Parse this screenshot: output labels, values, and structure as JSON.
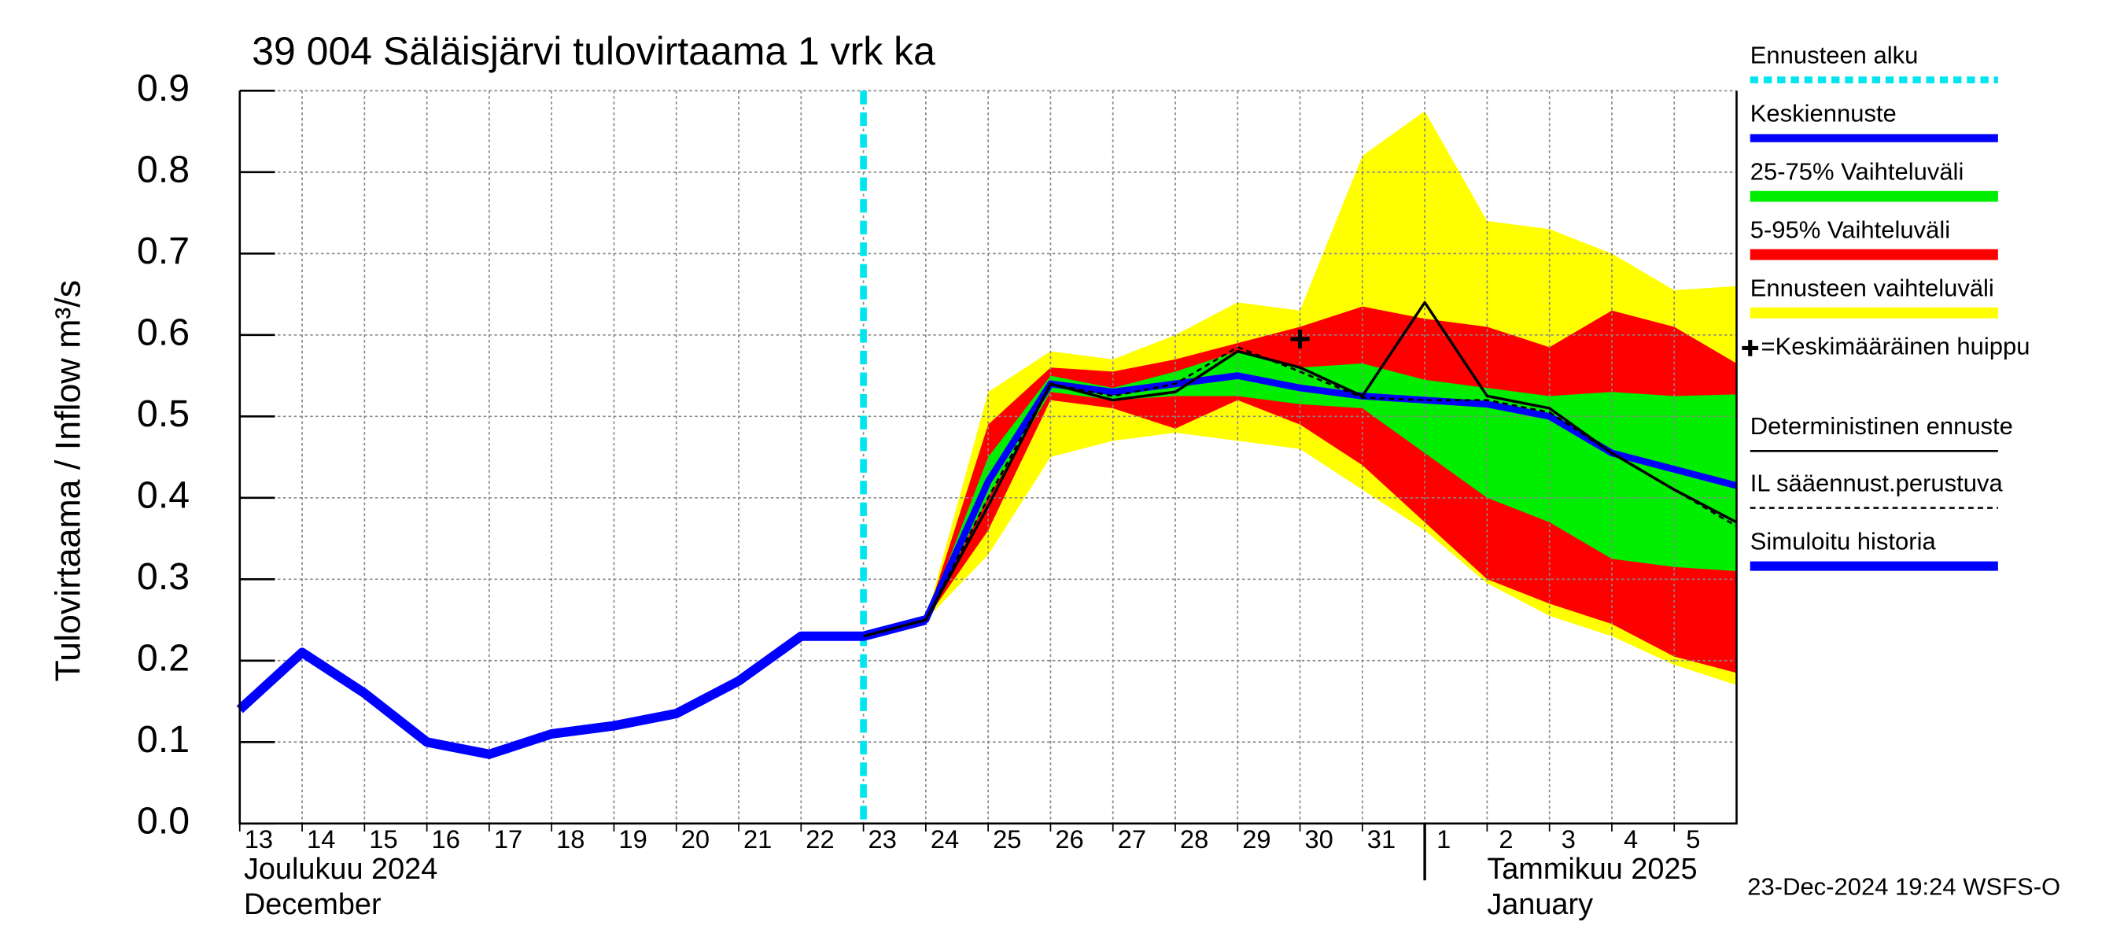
{
  "chart_data": {
    "type": "line",
    "title": "39 004 Säläisjärvi tulovirtaama 1 vrk ka",
    "ylabel": "Tulovirtaama / Inflow   m³/s",
    "timestamp": "23-Dec-2024 19:24 WSFS-O",
    "grid": true,
    "x": [
      "2024-12-13",
      "2024-12-14",
      "2024-12-15",
      "2024-12-16",
      "2024-12-17",
      "2024-12-18",
      "2024-12-19",
      "2024-12-20",
      "2024-12-21",
      "2024-12-22",
      "2024-12-23",
      "2024-12-24",
      "2024-12-25",
      "2024-12-26",
      "2024-12-27",
      "2024-12-28",
      "2024-12-29",
      "2024-12-30",
      "2024-12-31",
      "2025-01-01",
      "2025-01-02",
      "2025-01-03",
      "2025-01-04",
      "2025-01-05",
      "2025-01-06"
    ],
    "xlim": [
      "2024-12-13",
      "2025-01-06"
    ],
    "xticks": [
      {
        "value": "2024-12-13",
        "label": "13"
      },
      {
        "value": "2024-12-14",
        "label": "14"
      },
      {
        "value": "2024-12-15",
        "label": "15"
      },
      {
        "value": "2024-12-16",
        "label": "16"
      },
      {
        "value": "2024-12-17",
        "label": "17"
      },
      {
        "value": "2024-12-18",
        "label": "18"
      },
      {
        "value": "2024-12-19",
        "label": "19"
      },
      {
        "value": "2024-12-20",
        "label": "20"
      },
      {
        "value": "2024-12-21",
        "label": "21"
      },
      {
        "value": "2024-12-22",
        "label": "22"
      },
      {
        "value": "2024-12-23",
        "label": "23"
      },
      {
        "value": "2024-12-24",
        "label": "24"
      },
      {
        "value": "2024-12-25",
        "label": "25"
      },
      {
        "value": "2024-12-26",
        "label": "26"
      },
      {
        "value": "2024-12-27",
        "label": "27"
      },
      {
        "value": "2024-12-28",
        "label": "28"
      },
      {
        "value": "2024-12-29",
        "label": "29"
      },
      {
        "value": "2024-12-30",
        "label": "30"
      },
      {
        "value": "2024-12-31",
        "label": "31"
      },
      {
        "value": "2025-01-01",
        "label": "1"
      },
      {
        "value": "2025-01-02",
        "label": "2"
      },
      {
        "value": "2025-01-03",
        "label": "3"
      },
      {
        "value": "2025-01-04",
        "label": "4"
      },
      {
        "value": "2025-01-05",
        "label": "5"
      }
    ],
    "month_labels": [
      {
        "value": "2024-12-13",
        "label": "Joulukuu  2024",
        "label_en": "December"
      },
      {
        "value": "2025-01-01",
        "label": "Tammikuu  2025",
        "label_en": "January"
      }
    ],
    "ylim": [
      0,
      0.9
    ],
    "yticks": [
      {
        "value": 0,
        "label": "0.0"
      },
      0.1,
      0.2,
      0.3,
      0.4,
      0.5,
      0.6,
      0.7,
      0.8,
      0.9
    ],
    "forecast_start": {
      "name": "Ennusteen alku",
      "x": "2024-12-23",
      "color": "#00e5ee"
    },
    "peak": {
      "name": "=Keskimääräinen huippu",
      "x": "2024-12-30",
      "value": 0.595
    },
    "bands": [
      {
        "name": "Ennusteen vaihteluväli",
        "color": "#ffff00",
        "upper": [
          null,
          null,
          null,
          null,
          null,
          null,
          null,
          null,
          null,
          null,
          null,
          0.25,
          0.53,
          0.58,
          0.57,
          0.6,
          0.64,
          0.63,
          0.82,
          0.875,
          0.74,
          0.73,
          0.7,
          0.655,
          0.66
        ],
        "lower": [
          null,
          null,
          null,
          null,
          null,
          null,
          null,
          null,
          null,
          null,
          null,
          0.25,
          0.33,
          0.45,
          0.47,
          0.48,
          0.47,
          0.46,
          0.41,
          0.36,
          0.295,
          0.255,
          0.23,
          0.195,
          0.17
        ]
      },
      {
        "name": "5-95% Vaihteluväli",
        "color": "#ff0000",
        "upper": [
          null,
          null,
          null,
          null,
          null,
          null,
          null,
          null,
          null,
          null,
          null,
          0.25,
          0.49,
          0.56,
          0.555,
          0.57,
          0.59,
          0.61,
          0.635,
          0.62,
          0.61,
          0.585,
          0.63,
          0.61,
          0.565
        ],
        "lower": [
          null,
          null,
          null,
          null,
          null,
          null,
          null,
          null,
          null,
          null,
          null,
          0.25,
          0.36,
          0.52,
          0.51,
          0.485,
          0.52,
          0.49,
          0.44,
          0.37,
          0.3,
          0.27,
          0.245,
          0.205,
          0.185
        ]
      },
      {
        "name": "25-75% Vaihteluväli",
        "color": "#00ee00",
        "upper": [
          null,
          null,
          null,
          null,
          null,
          null,
          null,
          null,
          null,
          null,
          null,
          0.25,
          0.45,
          0.55,
          0.535,
          0.555,
          0.58,
          0.56,
          0.565,
          0.545,
          0.535,
          0.525,
          0.53,
          0.525,
          0.527
        ],
        "lower": [
          null,
          null,
          null,
          null,
          null,
          null,
          null,
          null,
          null,
          null,
          null,
          0.25,
          0.4,
          0.53,
          0.52,
          0.525,
          0.525,
          0.515,
          0.51,
          0.455,
          0.4,
          0.37,
          0.325,
          0.315,
          0.31
        ]
      }
    ],
    "series": [
      {
        "name": "Simuloitu historia",
        "color": "#0000ff",
        "values": [
          0.14,
          0.21,
          0.16,
          0.1,
          0.085,
          0.11,
          0.12,
          0.135,
          0.175,
          0.23,
          0.23,
          0.25,
          null,
          null,
          null,
          null,
          null,
          null,
          null,
          null,
          null,
          null,
          null,
          null,
          null
        ]
      },
      {
        "name": "Keskiennuste",
        "color": "#0000ff",
        "values": [
          null,
          null,
          null,
          null,
          null,
          null,
          null,
          null,
          null,
          null,
          0.23,
          0.25,
          0.42,
          0.54,
          0.53,
          0.54,
          0.55,
          0.535,
          0.525,
          0.52,
          0.515,
          0.5,
          0.455,
          0.435,
          0.415
        ]
      },
      {
        "name": "Deterministinen ennuste",
        "color": "#000000",
        "values": [
          null,
          null,
          null,
          null,
          null,
          null,
          null,
          null,
          null,
          null,
          0.23,
          0.25,
          0.39,
          0.54,
          0.52,
          0.53,
          0.58,
          0.56,
          0.525,
          0.64,
          0.525,
          0.51,
          0.455,
          0.41,
          0.37
        ]
      },
      {
        "name": "IL sääennust.perustuva",
        "color": "#000000",
        "dashed": true,
        "values": [
          null,
          null,
          null,
          null,
          null,
          null,
          null,
          null,
          null,
          null,
          0.23,
          0.25,
          0.4,
          0.54,
          0.525,
          0.54,
          0.585,
          0.555,
          0.523,
          0.52,
          0.52,
          0.505,
          0.455,
          0.41,
          0.365
        ]
      }
    ]
  }
}
